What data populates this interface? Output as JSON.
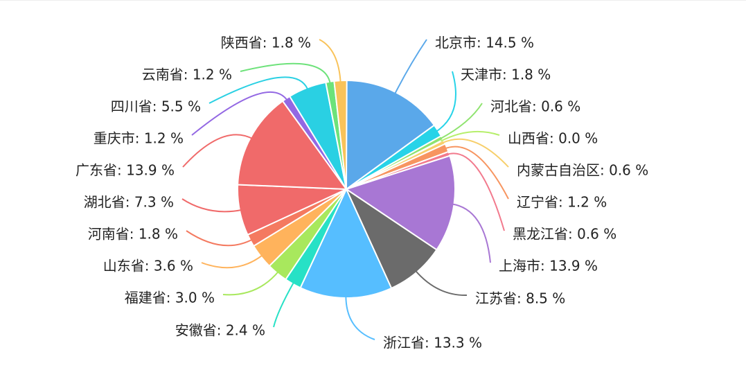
{
  "chart_data": {
    "type": "pie",
    "title": "",
    "label_format": "{name}: {value} %",
    "slices": [
      {
        "name": "北京市",
        "value": 14.5,
        "color": "#5aa8ea"
      },
      {
        "name": "天津市",
        "value": 1.8,
        "color": "#27d3e8"
      },
      {
        "name": "河北省",
        "value": 0.6,
        "color": "#8fe36f"
      },
      {
        "name": "山西省",
        "value": 0.0,
        "color": "#b6ef6b"
      },
      {
        "name": "内蒙古自治区",
        "value": 0.6,
        "color": "#f7cf6b"
      },
      {
        "name": "辽宁省",
        "value": 1.2,
        "color": "#f79560"
      },
      {
        "name": "黑龙江省",
        "value": 0.6,
        "color": "#f27a8d"
      },
      {
        "name": "上海市",
        "value": 13.9,
        "color": "#a877d4"
      },
      {
        "name": "江苏省",
        "value": 8.5,
        "color": "#6b6b6b"
      },
      {
        "name": "浙江省",
        "value": 13.3,
        "color": "#56beff"
      },
      {
        "name": "安徽省",
        "value": 2.4,
        "color": "#27e1c6"
      },
      {
        "name": "福建省",
        "value": 3.0,
        "color": "#a8e85d"
      },
      {
        "name": "山东省",
        "value": 3.6,
        "color": "#ffb35c"
      },
      {
        "name": "河南省",
        "value": 1.8,
        "color": "#f47a60"
      },
      {
        "name": "湖北省",
        "value": 7.3,
        "color": "#f06a6a"
      },
      {
        "name": "广东省",
        "value": 13.9,
        "color": "#f06a6a"
      },
      {
        "name": "重庆市",
        "value": 1.2,
        "color": "#9368e3"
      },
      {
        "name": "四川省",
        "value": 5.5,
        "color": "#2ad0e3"
      },
      {
        "name": "云南省",
        "value": 1.2,
        "color": "#6de27a"
      },
      {
        "name": "陕西省",
        "value": 1.8,
        "color": "#f9c35a"
      }
    ]
  }
}
